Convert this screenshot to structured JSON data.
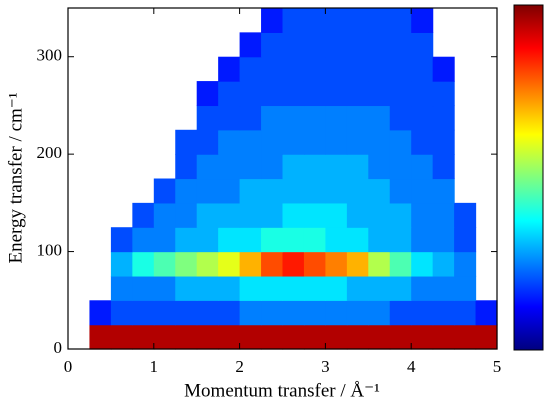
{
  "chart_data": {
    "type": "heatmap",
    "xlabel": "Momentum transfer / Å⁻¹",
    "ylabel": "Energy transfer / cm⁻¹",
    "xlim": [
      0,
      5
    ],
    "ylim": [
      0,
      350
    ],
    "xticks": [
      0,
      1,
      2,
      3,
      4,
      5
    ],
    "yticks": [
      0,
      100,
      200,
      300
    ],
    "xbins": [
      0.25,
      0.5,
      0.75,
      1.0,
      1.25,
      1.5,
      1.75,
      2.0,
      2.25,
      2.5,
      2.75,
      3.0,
      3.25,
      3.5,
      3.75,
      4.0,
      4.25,
      4.5,
      4.75,
      5.0
    ],
    "ybins": [
      0,
      25,
      50,
      75,
      100,
      125,
      150,
      175,
      200,
      225,
      250,
      275,
      300,
      325,
      350
    ],
    "zlim": [
      0,
      10
    ],
    "colorscale": [
      "#00007f",
      "#0000ff",
      "#007fff",
      "#00ffff",
      "#7fff7f",
      "#ffff00",
      "#ff7f00",
      "#ff0000",
      "#7f0000"
    ],
    "z": [
      [
        9.5,
        9.5,
        9.5,
        9.5,
        9.5,
        9.5,
        9.5,
        9.5,
        9.5,
        9.5,
        9.5,
        9.5,
        9.5,
        9.5,
        9.5,
        9.5,
        9.5,
        9.5,
        9.5
      ],
      [
        1.5,
        2,
        2,
        2,
        2,
        2,
        2,
        2.5,
        2.5,
        2.5,
        2.5,
        2.5,
        2.5,
        2.5,
        2,
        2,
        2,
        2,
        1.5
      ],
      [
        null,
        2.5,
        2.5,
        2.5,
        3,
        3,
        3,
        3.5,
        3.5,
        3.5,
        3.5,
        3.5,
        3,
        3,
        3,
        2.5,
        2.5,
        2.5,
        null
      ],
      [
        null,
        3,
        4,
        4.5,
        5,
        5.5,
        6,
        7,
        8,
        8.5,
        8,
        7.5,
        7,
        5.5,
        4.5,
        3.5,
        3,
        2.5,
        null
      ],
      [
        null,
        2,
        2.5,
        2.5,
        3,
        3,
        3.5,
        3.5,
        4,
        4,
        4,
        3.5,
        3.5,
        3,
        3,
        2.5,
        2.5,
        2,
        null
      ],
      [
        null,
        null,
        2,
        2.5,
        2.5,
        3,
        3,
        3,
        3,
        3.5,
        3.5,
        3.5,
        3,
        3,
        3,
        2.5,
        2.5,
        2,
        null
      ],
      [
        null,
        null,
        null,
        2,
        2.5,
        2.5,
        2.5,
        3,
        3,
        3,
        3,
        3,
        3,
        3,
        2.5,
        2.5,
        2.5,
        null,
        null
      ],
      [
        null,
        null,
        null,
        null,
        2,
        2.5,
        2.5,
        2.5,
        2.5,
        3,
        3,
        3,
        3,
        2.5,
        2.5,
        2.5,
        2,
        null,
        null
      ],
      [
        null,
        null,
        null,
        null,
        2,
        2,
        2.5,
        2.5,
        2.5,
        2.5,
        2.5,
        2.5,
        2.5,
        2.5,
        2.5,
        2,
        2,
        null,
        null
      ],
      [
        null,
        null,
        null,
        null,
        null,
        2,
        2,
        2,
        2.5,
        2.5,
        2.5,
        2.5,
        2.5,
        2.5,
        2,
        2,
        2,
        null,
        null
      ],
      [
        null,
        null,
        null,
        null,
        null,
        1.5,
        2,
        2,
        2,
        2,
        2,
        2,
        2,
        2,
        2,
        2,
        2,
        null,
        null
      ],
      [
        null,
        null,
        null,
        null,
        null,
        null,
        1.5,
        2,
        2,
        2,
        2,
        2,
        2,
        2,
        2,
        2,
        1.5,
        null,
        null
      ],
      [
        null,
        null,
        null,
        null,
        null,
        null,
        null,
        1.5,
        2,
        2,
        2,
        2,
        2,
        2,
        2,
        2,
        null,
        null,
        null
      ],
      [
        null,
        null,
        null,
        null,
        null,
        null,
        null,
        null,
        1.5,
        2,
        2,
        2,
        2,
        2,
        2,
        1.5,
        null,
        null,
        null
      ]
    ]
  }
}
